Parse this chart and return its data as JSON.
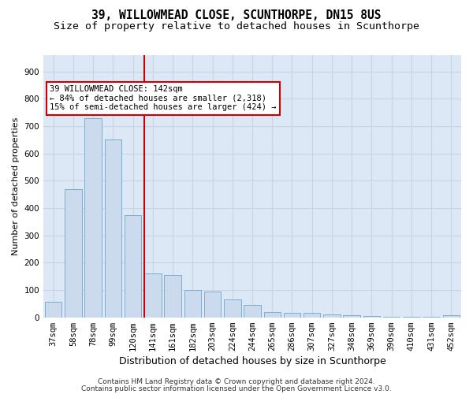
{
  "title": "39, WILLOWMEAD CLOSE, SCUNTHORPE, DN15 8US",
  "subtitle": "Size of property relative to detached houses in Scunthorpe",
  "xlabel": "Distribution of detached houses by size in Scunthorpe",
  "ylabel": "Number of detached properties",
  "bar_color": "#ccdaed",
  "bar_edge_color": "#7aaed0",
  "vline_color": "#cc0000",
  "categories": [
    "37sqm",
    "58sqm",
    "78sqm",
    "99sqm",
    "120sqm",
    "141sqm",
    "161sqm",
    "182sqm",
    "203sqm",
    "224sqm",
    "244sqm",
    "265sqm",
    "286sqm",
    "307sqm",
    "327sqm",
    "348sqm",
    "369sqm",
    "390sqm",
    "410sqm",
    "431sqm",
    "452sqm"
  ],
  "values": [
    58,
    470,
    730,
    650,
    375,
    160,
    155,
    100,
    95,
    65,
    45,
    20,
    17,
    17,
    10,
    8,
    5,
    3,
    2,
    2,
    8
  ],
  "ylim": [
    0,
    960
  ],
  "yticks": [
    0,
    100,
    200,
    300,
    400,
    500,
    600,
    700,
    800,
    900
  ],
  "grid_color": "#c8d4e4",
  "background_color": "#dce8f5",
  "annotation_text": "39 WILLOWMEAD CLOSE: 142sqm\n← 84% of detached houses are smaller (2,318)\n15% of semi-detached houses are larger (424) →",
  "annotation_box_color": "#ffffff",
  "annotation_box_edge": "#cc0000",
  "footer1": "Contains HM Land Registry data © Crown copyright and database right 2024.",
  "footer2": "Contains public sector information licensed under the Open Government Licence v3.0.",
  "title_fontsize": 10.5,
  "subtitle_fontsize": 9.5,
  "xlabel_fontsize": 9,
  "ylabel_fontsize": 8,
  "tick_fontsize": 7.5,
  "annotation_fontsize": 7.5,
  "footer_fontsize": 6.5
}
